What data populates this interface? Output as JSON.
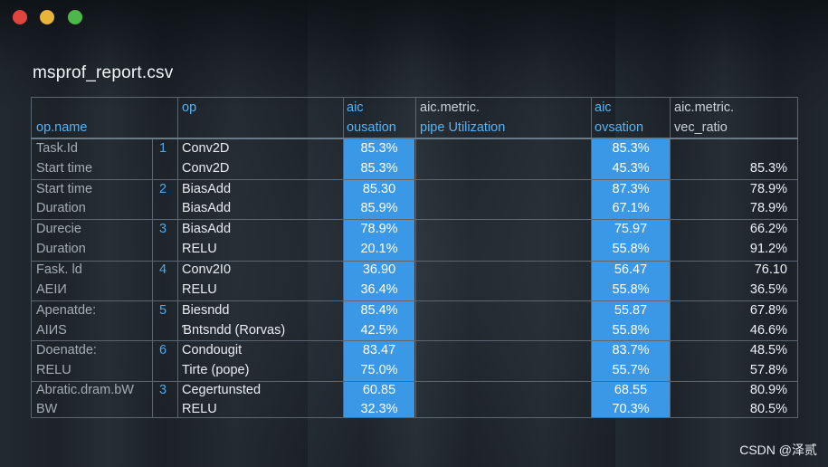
{
  "window": {
    "title": "msprof_report.csv",
    "controls": [
      "close",
      "minimize",
      "maximize"
    ]
  },
  "table": {
    "headers": {
      "col_name": "op.name",
      "col_op": "op",
      "col_aic1_line1": "aic",
      "col_aic1_line2": "ousation",
      "col_metric1_line1": "aic.metric.",
      "col_metric1_line2": "pipe Utilization",
      "col_aic2_line1": "aic",
      "col_aic2_line2": "ovsation",
      "col_metric2_line1": "aic.metric.",
      "col_metric2_line2": "vec_ratio"
    },
    "rows": [
      {
        "name": "Task.Id",
        "idx": "1",
        "op": "Conv2D",
        "v1": "85.3%",
        "v2": "85.3%",
        "v3": ""
      },
      {
        "name": "Start time",
        "idx": "",
        "op": "Conv2D",
        "v1": "85.3%",
        "v2": "45.3%",
        "v3": "85.3%"
      },
      {
        "name": "Start time",
        "idx": "2",
        "op": "BiasAdd",
        "v1": "85.30",
        "v2": "87.3%",
        "v3": "78.9%"
      },
      {
        "name": "Duration",
        "idx": "",
        "op": "BiasAdd",
        "v1": "85.9%",
        "v2": "67.1%",
        "v3": "78.9%"
      },
      {
        "name": "Durecie",
        "idx": "3",
        "op": "BiasAdd",
        "v1": "78.9%",
        "v2": "75.97",
        "v3": "66.2%"
      },
      {
        "name": "Duration",
        "idx": "",
        "op": "RELU",
        "v1": "20.1%",
        "v2": "55.8%",
        "v3": "91.2%"
      },
      {
        "name": "Fask. ld",
        "idx": "4",
        "op": "Conv2I0",
        "v1": "36.90",
        "v2": "56.47",
        "v3": "76.10"
      },
      {
        "name": "AEIИ",
        "idx": "",
        "op": "RELU",
        "v1": "36.4%",
        "v2": "55.8%",
        "v3": "36.5%"
      },
      {
        "name": "Apenatde:",
        "idx": "5",
        "op": "Biesndd",
        "v1": "85.4%",
        "v2": "55.87",
        "v3": "67.8%"
      },
      {
        "name": "AIИS",
        "idx": "",
        "op": "Ɓntsndd (Rorvas)",
        "v1": "42.5%",
        "v2": "55.8%",
        "v3": "46.6%"
      },
      {
        "name": "Doenatde:",
        "idx": "6",
        "op": "Condougit",
        "v1": "83.47",
        "v2": "83.7%",
        "v3": "48.5%"
      },
      {
        "name": "RELU",
        "idx": "",
        "op": "Tirte (pope)",
        "v1": "75.0%",
        "v2": "55.7%",
        "v3": "57.8%"
      },
      {
        "name": "Abratic.dram.bW",
        "idx": "3",
        "op": "Cegertunsted",
        "v1": "60.85",
        "v2": "68.55",
        "v3": "80.9%"
      },
      {
        "name": "BW",
        "idx": "",
        "op": "RELU",
        "v1": "32.3%",
        "v2": "70.3%",
        "v3": "80.5%"
      }
    ]
  },
  "watermark": "CSDN @泽贰",
  "colors": {
    "highlight": "#3b98e6",
    "header_text": "#54b4f5",
    "index_text": "#4ea8ee"
  }
}
